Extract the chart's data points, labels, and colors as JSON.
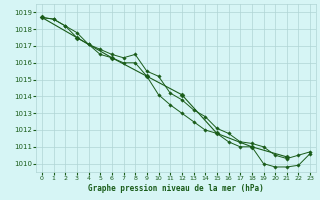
{
  "title": "Graphe pression niveau de la mer (hPa)",
  "bg_color": "#d6f5f5",
  "grid_color": "#b0d4d4",
  "line_color": "#1a5c1a",
  "marker_color": "#1a5c1a",
  "xlim": [
    -0.5,
    23.5
  ],
  "ylim": [
    1009.5,
    1019.5
  ],
  "yticks": [
    1010,
    1011,
    1012,
    1013,
    1014,
    1015,
    1016,
    1017,
    1018,
    1019
  ],
  "xticks": [
    0,
    1,
    2,
    3,
    4,
    5,
    6,
    7,
    8,
    9,
    10,
    11,
    12,
    13,
    14,
    15,
    16,
    17,
    18,
    19,
    20,
    21,
    22,
    23
  ],
  "series1": {
    "x": [
      0,
      1,
      2,
      3,
      4,
      5,
      6,
      7,
      8,
      9,
      10,
      11,
      12,
      13,
      14,
      15,
      16,
      17,
      18,
      19,
      20,
      21,
      22,
      23
    ],
    "y": [
      1018.7,
      1018.6,
      1018.2,
      1017.8,
      1017.1,
      1016.5,
      1016.3,
      1016.0,
      1016.0,
      1015.2,
      1014.1,
      1013.5,
      1013.0,
      1012.5,
      1012.0,
      1011.8,
      1011.3,
      1011.0,
      1011.0,
      1010.0,
      1009.8,
      1009.8,
      1009.9,
      1010.6
    ]
  },
  "series2": {
    "x": [
      0,
      1,
      2,
      3,
      4,
      5,
      6,
      7,
      8,
      9,
      10,
      11,
      12,
      13,
      14,
      15,
      16,
      17,
      18,
      19,
      20,
      21,
      22,
      23
    ],
    "y": [
      1018.7,
      1018.6,
      1018.2,
      1017.5,
      1017.1,
      1016.8,
      1016.5,
      1016.3,
      1016.5,
      1015.5,
      1015.2,
      1014.2,
      1013.8,
      1013.2,
      1012.8,
      1012.1,
      1011.8,
      1011.3,
      1011.2,
      1011.0,
      1010.5,
      1010.3,
      1010.5,
      1010.7
    ]
  },
  "series3": {
    "x": [
      0,
      3,
      6,
      9,
      12,
      15,
      18,
      21
    ],
    "y": [
      1018.7,
      1017.5,
      1016.3,
      1015.2,
      1014.1,
      1011.8,
      1011.0,
      1010.4
    ]
  }
}
